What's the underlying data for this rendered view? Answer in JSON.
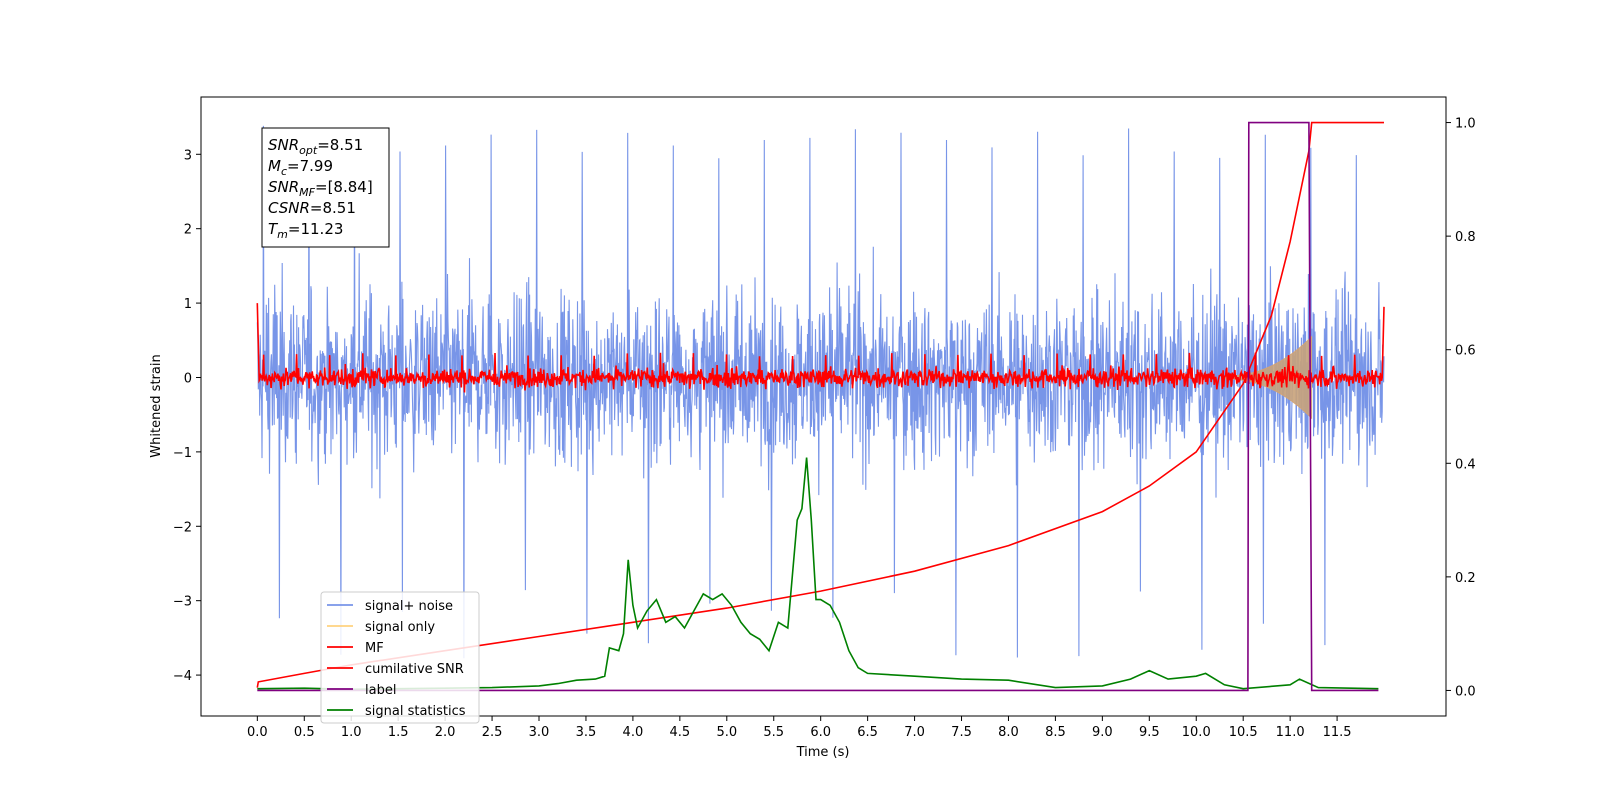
{
  "chart_data": {
    "type": "line",
    "title": "",
    "xlabel": "Time (s)",
    "ylabel": "Whitened strain",
    "ylabel_right": "",
    "xlim": [
      -0.6,
      12.66
    ],
    "ylim_left": [
      -4.55,
      3.77
    ],
    "ylim_right": [
      -0.045,
      1.045
    ],
    "x_ticks": [
      0.0,
      0.5,
      1.0,
      1.5,
      2.0,
      2.5,
      3.0,
      3.5,
      4.0,
      4.5,
      5.0,
      5.5,
      6.0,
      6.5,
      7.0,
      7.5,
      8.0,
      8.5,
      9.0,
      9.5,
      10.0,
      10.5,
      11.0,
      11.5
    ],
    "x_tick_labels": [
      "0.0",
      "0.5",
      "1.0",
      "1.5",
      "2.0",
      "2.5",
      "3.0",
      "3.5",
      "4.0",
      "4.5",
      "5.0",
      "5.5",
      "6.0",
      "6.5",
      "7.0",
      "7.5",
      "8.0",
      "8.5",
      "9.0",
      "9.5",
      "10.0",
      "10.5",
      "11.0",
      "11.5"
    ],
    "y_ticks_left": [
      -4,
      -3,
      -2,
      -1,
      0,
      1,
      2,
      3
    ],
    "y_tick_labels_left": [
      "−4",
      "−3",
      "−2",
      "−1",
      "0",
      "1",
      "2",
      "3"
    ],
    "y_ticks_right": [
      0.0,
      0.2,
      0.4,
      0.6,
      0.8,
      1.0
    ],
    "y_tick_labels_right": [
      "0.0",
      "0.2",
      "0.4",
      "0.6",
      "0.8",
      "1.0"
    ],
    "grid": false,
    "legend_position": "lower-left",
    "annotation": [
      {
        "base": "SNR",
        "sub": "opt",
        "value": "=8.51"
      },
      {
        "base": "M",
        "sub": "c",
        "value": "=7.99"
      },
      {
        "base": "SNR",
        "sub": "MF",
        "value": "=[8.84]"
      },
      {
        "base": "CSNR",
        "sub": "",
        "value": "=8.51"
      },
      {
        "base": "T",
        "sub": "m",
        "value": "=11.23"
      }
    ],
    "series": [
      {
        "name": "signal+ noise",
        "color": "#7895e8",
        "axis": "left",
        "t_start": 0.0,
        "t_end": 12.0,
        "rms": 0.75,
        "peak_max": 3.43,
        "peak_min": -3.78
      },
      {
        "name": "signal only",
        "color": "#d4a373",
        "axis": "left",
        "t_start": 10.3,
        "t_end": 11.23,
        "amplitude_start": 0.02,
        "amplitude_end": 0.55
      },
      {
        "name": "MF",
        "color": "#ff0000",
        "axis": "left",
        "t_start": 0.0,
        "t_end": 12.0,
        "rms": 0.09,
        "edge_start": 1.0,
        "edge_end": 0.95
      },
      {
        "name": "cumilative SNR",
        "color": "#ff0000",
        "axis": "right",
        "x": [
          0.0,
          0.01,
          0.5,
          1.0,
          2.0,
          3.0,
          4.0,
          5.0,
          6.0,
          7.0,
          8.0,
          9.0,
          9.5,
          10.0,
          10.5,
          10.8,
          11.0,
          11.1,
          11.2,
          11.23,
          11.3,
          12.0
        ],
        "values": [
          0.005,
          0.015,
          0.03,
          0.045,
          0.07,
          0.095,
          0.12,
          0.145,
          0.175,
          0.21,
          0.255,
          0.315,
          0.36,
          0.42,
          0.54,
          0.66,
          0.79,
          0.87,
          0.95,
          1.0,
          1.0,
          1.0
        ]
      },
      {
        "name": "label",
        "color": "#800080",
        "axis": "right",
        "x": [
          0.0,
          10.55,
          10.56,
          11.2,
          11.23,
          11.94
        ],
        "values": [
          0.0,
          0.0,
          1.0,
          1.0,
          0.0,
          0.0
        ]
      },
      {
        "name": "signal statistics",
        "color": "#008000",
        "axis": "right",
        "x": [
          0.0,
          0.5,
          1.0,
          1.5,
          2.0,
          2.5,
          3.0,
          3.2,
          3.4,
          3.6,
          3.7,
          3.75,
          3.85,
          3.9,
          3.95,
          4.0,
          4.05,
          4.15,
          4.25,
          4.35,
          4.45,
          4.55,
          4.65,
          4.75,
          4.85,
          4.95,
          5.05,
          5.15,
          5.25,
          5.35,
          5.45,
          5.55,
          5.65,
          5.75,
          5.8,
          5.85,
          5.9,
          5.95,
          6.0,
          6.1,
          6.2,
          6.3,
          6.4,
          6.5,
          7.0,
          7.5,
          8.0,
          8.5,
          9.0,
          9.3,
          9.5,
          9.7,
          10.0,
          10.1,
          10.3,
          10.5,
          11.0,
          11.1,
          11.3,
          11.94
        ],
        "values": [
          0.003,
          0.004,
          0.002,
          0.003,
          0.004,
          0.005,
          0.008,
          0.012,
          0.018,
          0.02,
          0.025,
          0.075,
          0.07,
          0.1,
          0.23,
          0.15,
          0.11,
          0.14,
          0.16,
          0.12,
          0.13,
          0.11,
          0.14,
          0.17,
          0.16,
          0.17,
          0.15,
          0.12,
          0.1,
          0.09,
          0.07,
          0.12,
          0.11,
          0.3,
          0.32,
          0.41,
          0.3,
          0.16,
          0.16,
          0.15,
          0.12,
          0.07,
          0.04,
          0.03,
          0.025,
          0.02,
          0.018,
          0.005,
          0.008,
          0.02,
          0.035,
          0.02,
          0.025,
          0.03,
          0.01,
          0.003,
          0.01,
          0.02,
          0.005,
          0.003
        ]
      }
    ]
  }
}
